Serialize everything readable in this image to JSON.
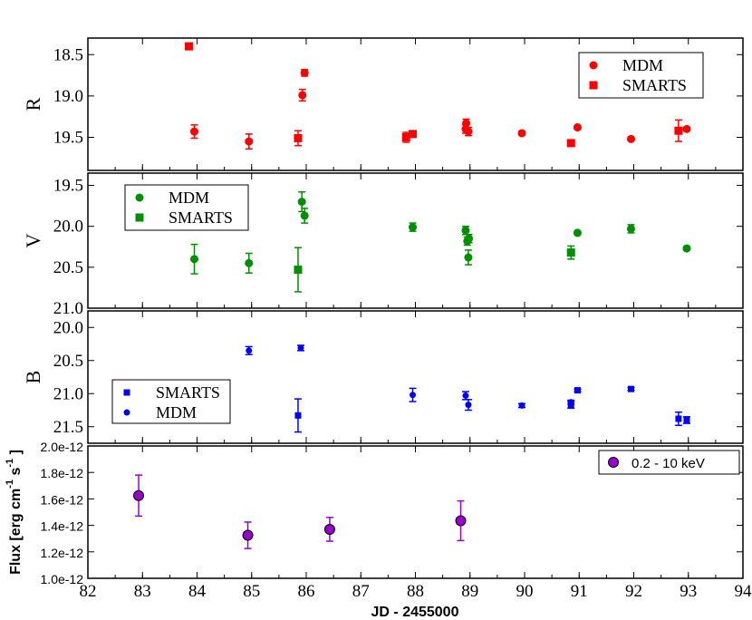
{
  "chart_data": {
    "type": "scatter",
    "xlabel": "JD - 2455000",
    "xlim": [
      82,
      94
    ],
    "x_ticks": [
      "82",
      "83",
      "84",
      "85",
      "86",
      "87",
      "88",
      "89",
      "90",
      "91",
      "92",
      "93",
      "94"
    ],
    "colors": {
      "R": "#ff0000",
      "V": "#008f00",
      "B": "#0000ff",
      "X": "#9900cc"
    },
    "panels": [
      {
        "id": "R",
        "ylabel": "R",
        "ylim": [
          18.3,
          19.9
        ],
        "inverted": true,
        "y_ticks": [
          "18.5",
          "19.0",
          "19.5"
        ],
        "legend": {
          "position": "top-right",
          "entries": [
            "MDM",
            "SMARTS"
          ]
        },
        "series": [
          {
            "name": "MDM",
            "marker": "circle",
            "points": [
              {
                "x": 83.95,
                "y": 19.43,
                "err": 0.08
              },
              {
                "x": 84.95,
                "y": 19.55,
                "err": 0.09
              },
              {
                "x": 85.93,
                "y": 18.99,
                "err": 0.07
              },
              {
                "x": 85.97,
                "y": 18.72,
                "err": 0.04
              },
              {
                "x": 88.93,
                "y": 19.33,
                "err": 0.05
              },
              {
                "x": 88.92,
                "y": 19.4,
                "err": 0.05
              },
              {
                "x": 88.97,
                "y": 19.43,
                "err": 0.05
              },
              {
                "x": 89.95,
                "y": 19.45,
                "err": 0.02
              },
              {
                "x": 90.97,
                "y": 19.38,
                "err": 0.02
              },
              {
                "x": 91.95,
                "y": 19.52,
                "err": 0.02
              },
              {
                "x": 92.97,
                "y": 19.4,
                "err": 0.02
              }
            ]
          },
          {
            "name": "SMARTS",
            "marker": "square",
            "points": [
              {
                "x": 83.85,
                "y": 18.4,
                "err": 0
              },
              {
                "x": 85.85,
                "y": 19.51,
                "err": 0.09
              },
              {
                "x": 87.83,
                "y": 19.5,
                "err": 0.06
              },
              {
                "x": 87.95,
                "y": 19.46,
                "err": 0.03
              },
              {
                "x": 90.85,
                "y": 19.57,
                "err": 0.02
              },
              {
                "x": 92.82,
                "y": 19.42,
                "err": 0.13
              }
            ]
          }
        ]
      },
      {
        "id": "V",
        "ylabel": "V",
        "ylim": [
          19.35,
          21.0
        ],
        "inverted": true,
        "y_ticks": [
          "19.5",
          "20.0",
          "20.5",
          "21.0"
        ],
        "legend": {
          "position": "top-left",
          "entries": [
            "MDM",
            "SMARTS"
          ]
        },
        "series": [
          {
            "name": "MDM",
            "marker": "circle",
            "points": [
              {
                "x": 83.95,
                "y": 20.4,
                "err": 0.18
              },
              {
                "x": 84.95,
                "y": 20.45,
                "err": 0.12
              },
              {
                "x": 85.92,
                "y": 19.7,
                "err": 0.12
              },
              {
                "x": 85.97,
                "y": 19.87,
                "err": 0.09
              },
              {
                "x": 87.95,
                "y": 20.01,
                "err": 0.05
              },
              {
                "x": 88.92,
                "y": 20.05,
                "err": 0.05
              },
              {
                "x": 88.95,
                "y": 20.18,
                "err": 0.05
              },
              {
                "x": 88.98,
                "y": 20.15,
                "err": 0.05
              },
              {
                "x": 88.97,
                "y": 20.38,
                "err": 0.09
              },
              {
                "x": 90.97,
                "y": 20.08,
                "err": 0.02
              },
              {
                "x": 91.95,
                "y": 20.03,
                "err": 0.05
              },
              {
                "x": 92.97,
                "y": 20.27,
                "err": 0.02
              }
            ]
          },
          {
            "name": "SMARTS",
            "marker": "square",
            "points": [
              {
                "x": 85.85,
                "y": 20.53,
                "err": 0.27
              },
              {
                "x": 90.85,
                "y": 20.32,
                "err": 0.08
              }
            ]
          }
        ]
      },
      {
        "id": "B",
        "ylabel": "B",
        "ylim": [
          19.75,
          21.75
        ],
        "inverted": true,
        "y_ticks": [
          "20.0",
          "20.5",
          "21.0",
          "21.5"
        ],
        "legend": {
          "position": "bottom-left",
          "entries": [
            "SMARTS",
            "MDM"
          ]
        },
        "series": [
          {
            "name": "SMARTS",
            "marker": "square",
            "points": [
              {
                "x": 85.85,
                "y": 21.33,
                "err": 0.25
              },
              {
                "x": 90.85,
                "y": 21.17,
                "err": 0.05
              },
              {
                "x": 90.97,
                "y": 20.95,
                "err": 0.02
              },
              {
                "x": 91.95,
                "y": 20.93,
                "err": 0.02
              },
              {
                "x": 92.82,
                "y": 21.38,
                "err": 0.1
              },
              {
                "x": 92.97,
                "y": 21.4,
                "err": 0.05
              }
            ]
          },
          {
            "name": "MDM",
            "marker": "circle",
            "points": [
              {
                "x": 84.95,
                "y": 20.35,
                "err": 0.06
              },
              {
                "x": 85.9,
                "y": 20.31,
                "err": 0.04
              },
              {
                "x": 87.95,
                "y": 21.02,
                "err": 0.1
              },
              {
                "x": 88.92,
                "y": 21.03,
                "err": 0.06
              },
              {
                "x": 88.97,
                "y": 21.17,
                "err": 0.08
              },
              {
                "x": 89.95,
                "y": 21.18,
                "err": 0.03
              },
              {
                "x": 90.85,
                "y": 21.13,
                "err": 0.03
              }
            ]
          }
        ]
      },
      {
        "id": "X",
        "ylabel": "Flux [erg cm-1 s-1]",
        "ylabel_parts": {
          "main": "Flux [erg cm",
          "sup1": "-1",
          "mid": " s",
          "sup2": "-1",
          "end": " ]"
        },
        "ylim": [
          1e-12,
          2e-12
        ],
        "inverted": false,
        "y_ticks": [
          "1.0e-12",
          "1.2e-12",
          "1.4e-12",
          "1.6e-12",
          "1.8e-12",
          "2.0e-12"
        ],
        "legend": {
          "position": "top-right",
          "entries": [
            "0.2 - 10 keV"
          ]
        },
        "series": [
          {
            "name": "0.2 - 10 keV",
            "marker": "circle-outline",
            "points": [
              {
                "x": 82.93,
                "y": 1.625e-12,
                "err": 1.55e-13
              },
              {
                "x": 84.93,
                "y": 1.325e-12,
                "err": 1e-13
              },
              {
                "x": 86.43,
                "y": 1.37e-12,
                "err": 9e-14
              },
              {
                "x": 88.83,
                "y": 1.435e-12,
                "err": 1.5e-13
              }
            ]
          }
        ]
      }
    ]
  }
}
